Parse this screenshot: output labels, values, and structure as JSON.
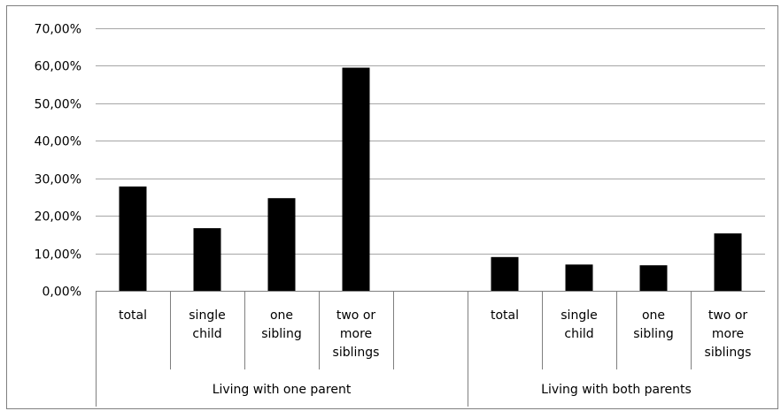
{
  "chart_data": {
    "type": "bar",
    "title": "",
    "xlabel": "",
    "ylabel": "",
    "ylim": [
      0,
      70
    ],
    "y_ticks": [
      "0,00%",
      "10,00%",
      "20,00%",
      "30,00%",
      "40,00%",
      "50,00%",
      "60,00%",
      "70,00%"
    ],
    "grid": true,
    "bar_color": "#000000",
    "groups": [
      {
        "name": "Living with one parent",
        "categories": [
          [
            "total"
          ],
          [
            "single",
            "child"
          ],
          [
            "one",
            "sibling"
          ],
          [
            "two or",
            "more",
            "siblings"
          ]
        ],
        "values": [
          27.8,
          16.7,
          24.7,
          59.5
        ]
      },
      {
        "name": "Living with both parents",
        "categories": [
          [
            "total"
          ],
          [
            "single",
            "child"
          ],
          [
            "one",
            "sibling"
          ],
          [
            "two or",
            "more",
            "siblings"
          ]
        ],
        "values": [
          9.0,
          7.0,
          6.8,
          15.3
        ]
      }
    ]
  }
}
